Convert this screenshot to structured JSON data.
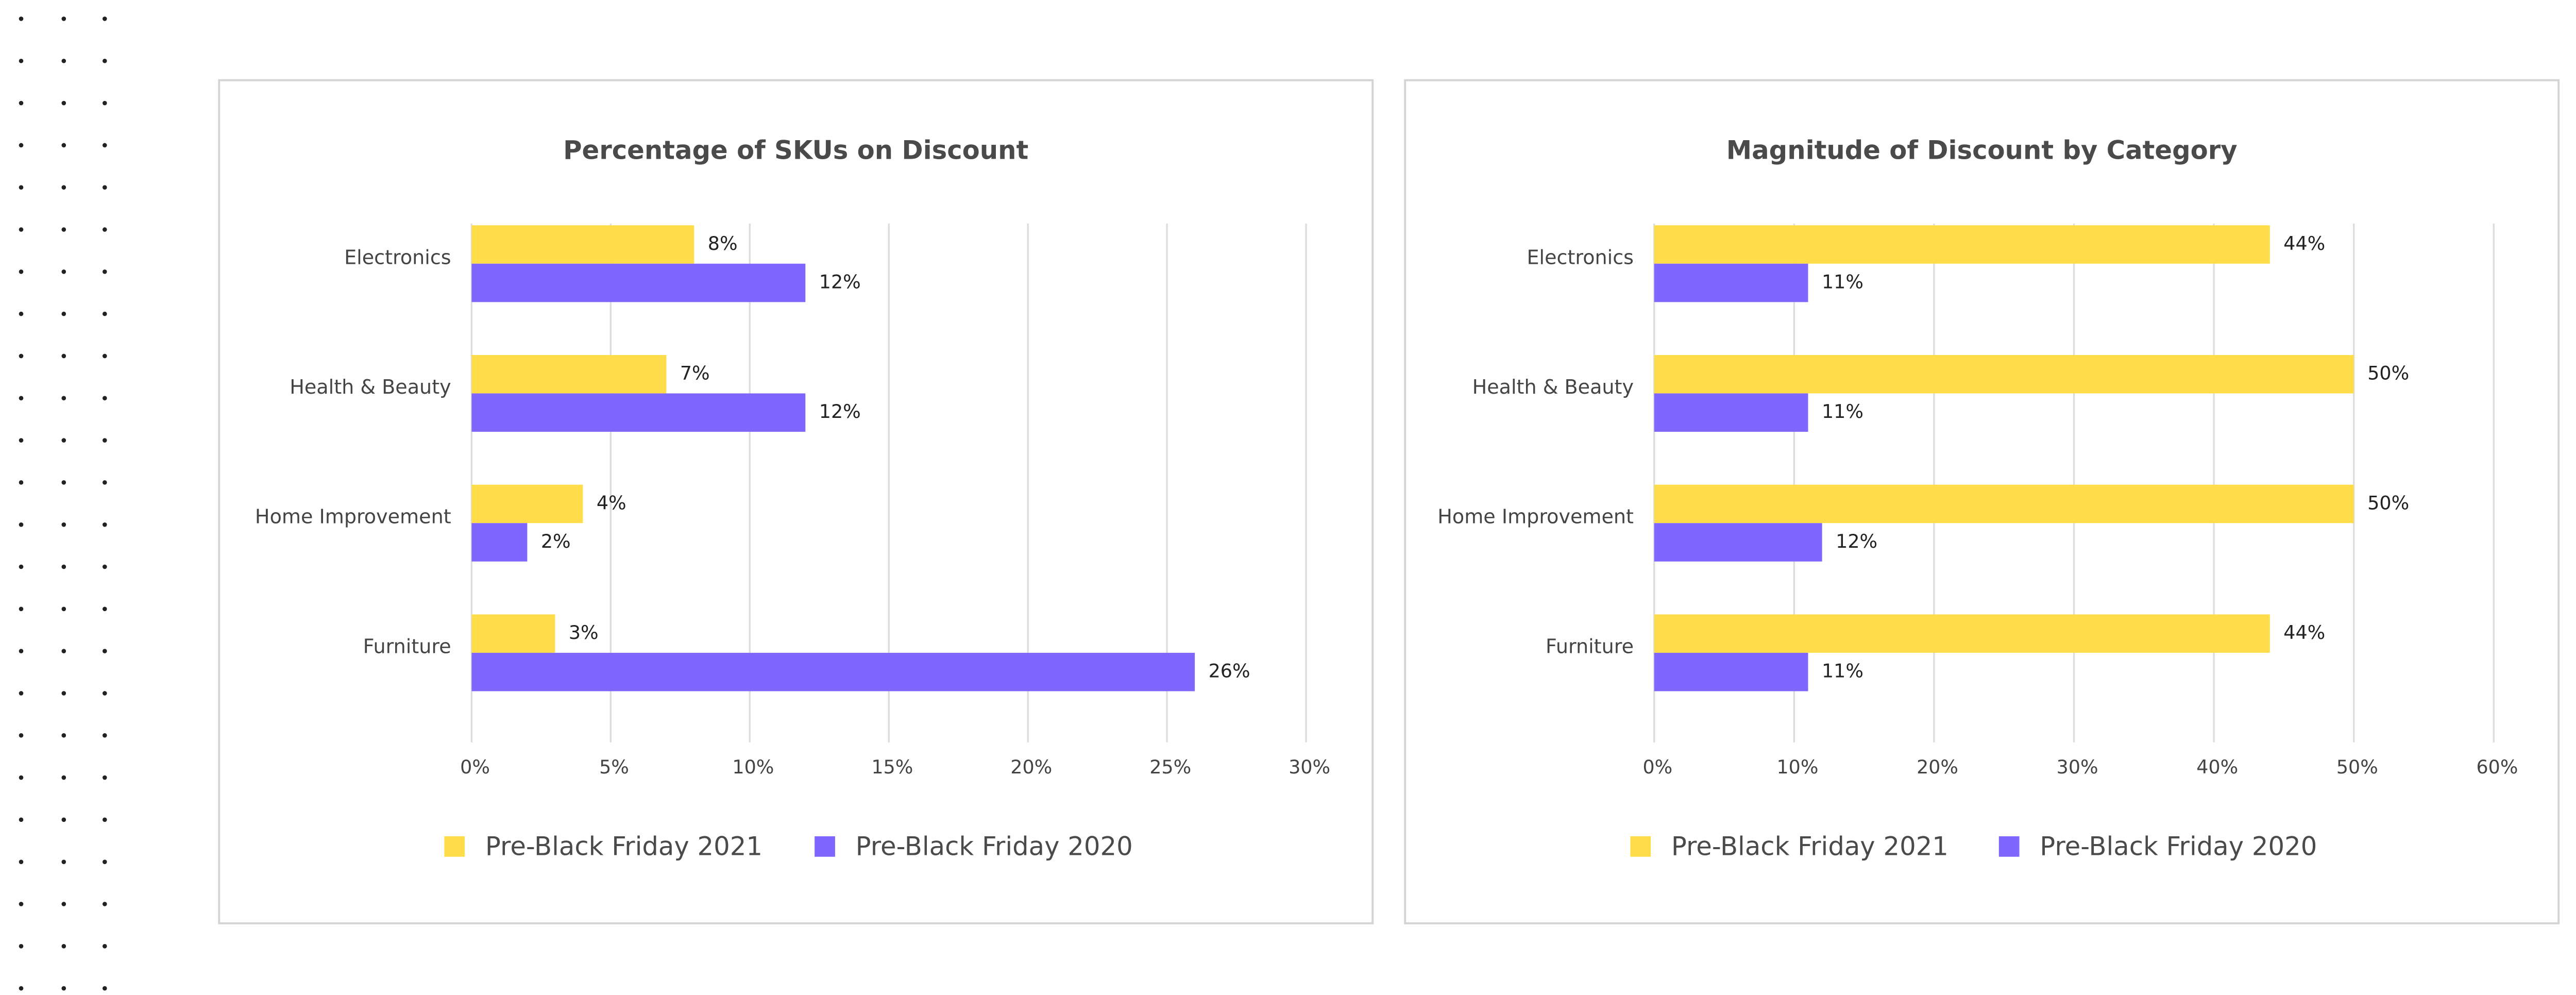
{
  "chart_data": [
    {
      "type": "bar",
      "orientation": "horizontal",
      "title": "Percentage of SKUs on Discount",
      "categories": [
        "Electronics",
        "Health & Beauty",
        "Home Improvement",
        "Furniture"
      ],
      "series": [
        {
          "name": "Pre-Black Friday 2021",
          "color": "#FFDD4A",
          "values": [
            8,
            7,
            4,
            3
          ],
          "value_labels": [
            "8%",
            "7%",
            "4%",
            "3%"
          ]
        },
        {
          "name": "Pre-Black Friday 2020",
          "color": "#7F66FF",
          "values": [
            12,
            12,
            2,
            26
          ],
          "value_labels": [
            "12%",
            "12%",
            "2%",
            "26%"
          ]
        }
      ],
      "xlim": [
        0,
        30
      ],
      "xticks": [
        {
          "value": 0,
          "label": "0%"
        },
        {
          "value": 5,
          "label": "5%"
        },
        {
          "value": 10,
          "label": "10%"
        },
        {
          "value": 15,
          "label": "15%"
        },
        {
          "value": 20,
          "label": "20%"
        },
        {
          "value": 25,
          "label": "25%"
        },
        {
          "value": 30,
          "label": "30%"
        }
      ],
      "grid": true,
      "legend": "bottom"
    },
    {
      "type": "bar",
      "orientation": "horizontal",
      "title": "Magnitude of Discount by Category",
      "categories": [
        "Electronics",
        "Health & Beauty",
        "Home Improvement",
        "Furniture"
      ],
      "series": [
        {
          "name": "Pre-Black Friday 2021",
          "color": "#FFDD4A",
          "values": [
            44,
            50,
            50,
            44
          ],
          "value_labels": [
            "44%",
            "50%",
            "50%",
            "44%"
          ]
        },
        {
          "name": "Pre-Black Friday 2020",
          "color": "#7F66FF",
          "values": [
            11,
            11,
            12,
            11
          ],
          "value_labels": [
            "11%",
            "11%",
            "12%",
            "11%"
          ]
        }
      ],
      "xlim": [
        0,
        60
      ],
      "xticks": [
        {
          "value": 0,
          "label": "0%"
        },
        {
          "value": 10,
          "label": "10%"
        },
        {
          "value": 20,
          "label": "20%"
        },
        {
          "value": 30,
          "label": "30%"
        },
        {
          "value": 40,
          "label": "40%"
        },
        {
          "value": 50,
          "label": "50%"
        },
        {
          "value": 60,
          "label": "60%"
        }
      ],
      "grid": true,
      "legend": "bottom"
    }
  ]
}
